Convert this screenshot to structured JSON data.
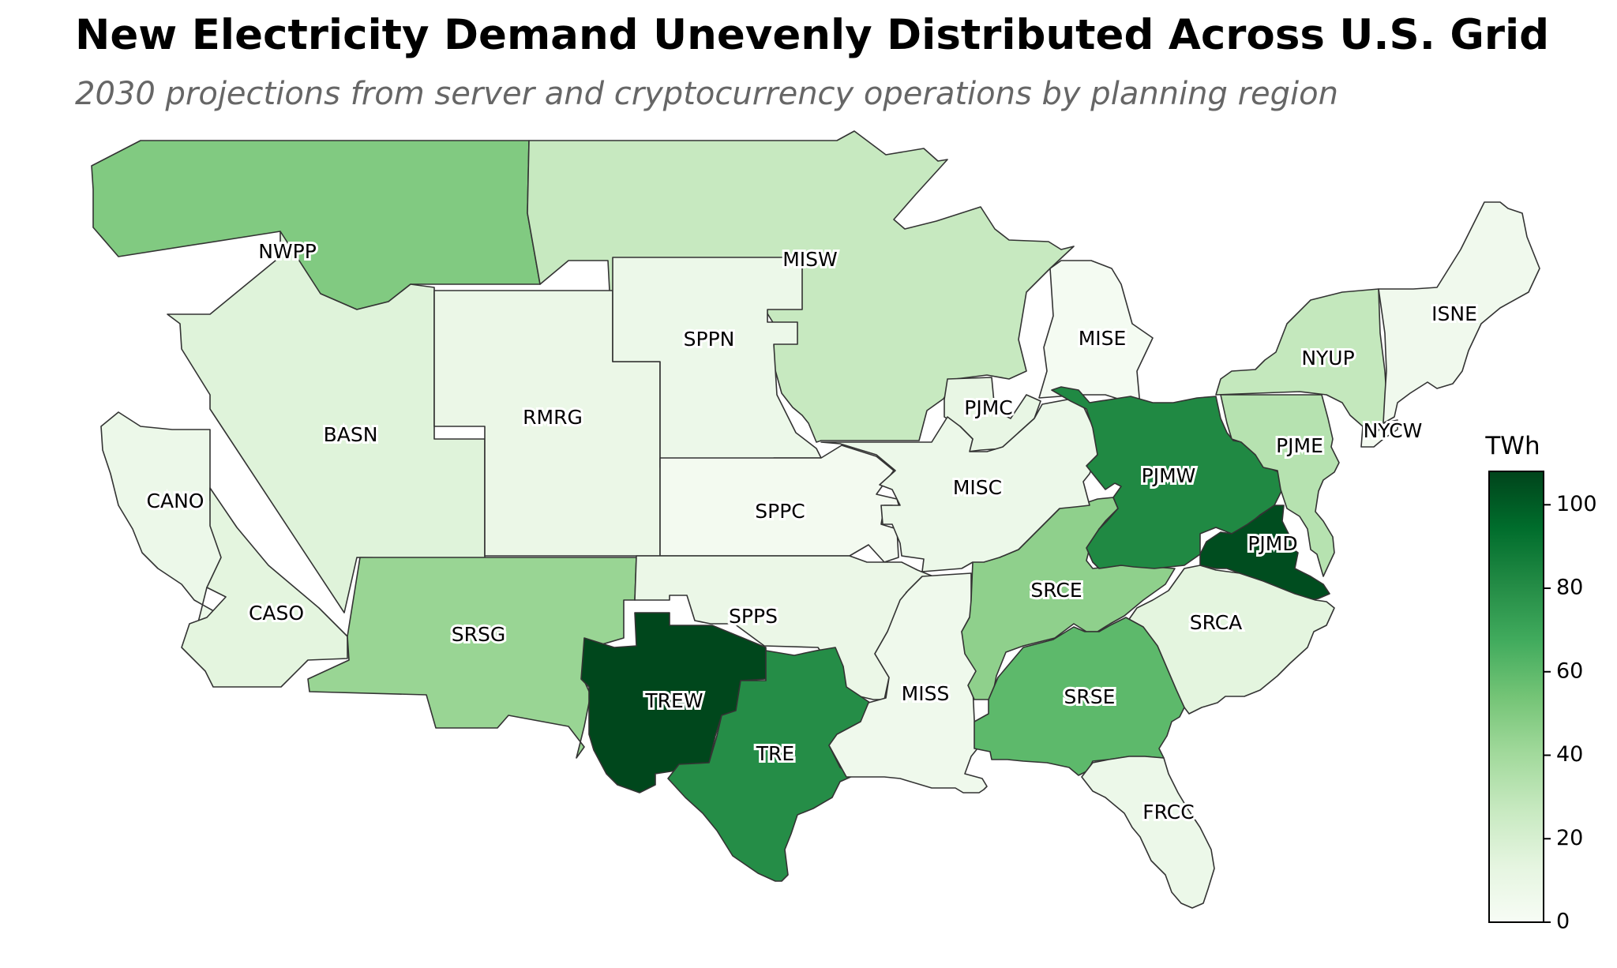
{
  "title": "New Electricity Demand Unevenly Distributed Across U.S. Grid",
  "subtitle": "2030 projections from server and cryptocurrency operations by planning region",
  "colorbar": {
    "title": "TWh",
    "min": 0,
    "max": 108,
    "ticks": [
      0,
      20,
      40,
      60,
      80,
      100
    ]
  },
  "color_scale": [
    "#f7fcf5",
    "#e5f5e0",
    "#c7e9c0",
    "#a1d99b",
    "#74c476",
    "#41ab5d",
    "#238b45",
    "#006d2c",
    "#00441b"
  ],
  "regions": [
    {
      "id": "NWPP",
      "label": "NWPP",
      "value": 50
    },
    {
      "id": "MISW",
      "label": "MISW",
      "value": 27
    },
    {
      "id": "BASN",
      "label": "BASN",
      "value": 16
    },
    {
      "id": "RMRG",
      "label": "RMRG",
      "value": 9
    },
    {
      "id": "SPPN",
      "label": "SPPN",
      "value": 8
    },
    {
      "id": "CANO",
      "label": "CANO",
      "value": 8
    },
    {
      "id": "CASO",
      "label": "CASO",
      "value": 14
    },
    {
      "id": "SRSG",
      "label": "SRSG",
      "value": 43
    },
    {
      "id": "SPPC",
      "label": "SPPC",
      "value": 3
    },
    {
      "id": "SPPS",
      "label": "SPPS",
      "value": 9
    },
    {
      "id": "TREW",
      "label": "TREW",
      "value": 107
    },
    {
      "id": "TRE",
      "label": "TRE",
      "value": 80
    },
    {
      "id": "MISS",
      "label": "MISS",
      "value": 6
    },
    {
      "id": "MISE",
      "label": "MISE",
      "value": 2
    },
    {
      "id": "PJMC",
      "label": "PJMC",
      "value": 11
    },
    {
      "id": "MISC",
      "label": "MISC",
      "value": 8
    },
    {
      "id": "PJMW",
      "label": "PJMW",
      "value": 82
    },
    {
      "id": "PJME",
      "label": "PJME",
      "value": 33
    },
    {
      "id": "PJMD",
      "label": "PJMD",
      "value": 105
    },
    {
      "id": "SRCE",
      "label": "SRCE",
      "value": 46
    },
    {
      "id": "SRCA",
      "label": "SRCA",
      "value": 14
    },
    {
      "id": "SRSE",
      "label": "SRSE",
      "value": 60
    },
    {
      "id": "FRCC",
      "label": "FRCC",
      "value": 8
    },
    {
      "id": "NYUP",
      "label": "NYUP",
      "value": 28
    },
    {
      "id": "NYCW",
      "label": "NYCW",
      "value": 3
    },
    {
      "id": "ISNE",
      "label": "ISNE",
      "value": 5
    }
  ]
}
